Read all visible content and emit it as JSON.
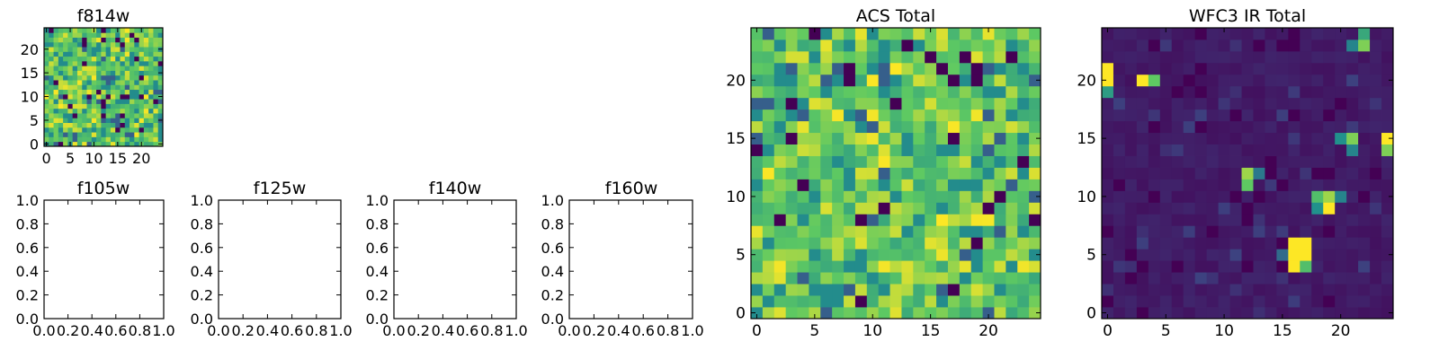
{
  "figure": {
    "colormap": [
      "#440154",
      "#3b528b",
      "#21918c",
      "#5ec962",
      "#fde725"
    ],
    "background": "#ffffff"
  },
  "chart_data": [
    {
      "name": "f814w",
      "type": "heatmap",
      "title": "f814w",
      "xlabel": "",
      "ylabel": "",
      "xlim": [
        -0.5,
        24.5
      ],
      "ylim": [
        -0.5,
        24.5
      ],
      "xticks": [
        "0",
        "5",
        "10",
        "15",
        "20"
      ],
      "yticks": [
        "0",
        "5",
        "10",
        "15",
        "20"
      ],
      "grid": "25x25",
      "seed": 814,
      "profile": "acs",
      "values": "not legible per pixel"
    },
    {
      "name": "f105w",
      "type": "empty",
      "title": "f105w",
      "xlim": [
        0,
        1
      ],
      "ylim": [
        0,
        1
      ],
      "xticks": [
        "0.0",
        "0.2",
        "0.4",
        "0.6",
        "0.8",
        "1.0"
      ],
      "yticks": [
        "0.0",
        "0.2",
        "0.4",
        "0.6",
        "0.8",
        "1.0"
      ]
    },
    {
      "name": "f125w",
      "type": "empty",
      "title": "f125w",
      "xlim": [
        0,
        1
      ],
      "ylim": [
        0,
        1
      ],
      "xticks": [
        "0.0",
        "0.2",
        "0.4",
        "0.6",
        "0.8",
        "1.0"
      ],
      "yticks": [
        "0.0",
        "0.2",
        "0.4",
        "0.6",
        "0.8",
        "1.0"
      ]
    },
    {
      "name": "f140w",
      "type": "empty",
      "title": "f140w",
      "xlim": [
        0,
        1
      ],
      "ylim": [
        0,
        1
      ],
      "xticks": [
        "0.0",
        "0.2",
        "0.4",
        "0.6",
        "0.8",
        "1.0"
      ],
      "yticks": [
        "0.0",
        "0.2",
        "0.4",
        "0.6",
        "0.8",
        "1.0"
      ]
    },
    {
      "name": "f160w",
      "type": "empty",
      "title": "f160w",
      "xlim": [
        0,
        1
      ],
      "ylim": [
        0,
        1
      ],
      "xticks": [
        "0.0",
        "0.2",
        "0.4",
        "0.6",
        "0.8",
        "1.0"
      ],
      "yticks": [
        "0.0",
        "0.2",
        "0.4",
        "0.6",
        "0.8",
        "1.0"
      ]
    },
    {
      "name": "acs-total",
      "type": "heatmap",
      "title": "ACS Total",
      "xlim": [
        -0.5,
        24.5
      ],
      "ylim": [
        -0.5,
        24.5
      ],
      "xticks": [
        "0",
        "5",
        "10",
        "15",
        "20"
      ],
      "yticks": [
        "0",
        "5",
        "10",
        "15",
        "20"
      ],
      "grid": "25x25",
      "seed": 1001,
      "profile": "acs",
      "values": "not legible per pixel"
    },
    {
      "name": "wfc3-ir-total",
      "type": "heatmap",
      "title": "WFC3 IR Total",
      "xlim": [
        -0.5,
        24.5
      ],
      "ylim": [
        -0.5,
        24.5
      ],
      "xticks": [
        "0",
        "5",
        "10",
        "15",
        "20"
      ],
      "yticks": [
        "0",
        "5",
        "10",
        "15",
        "20"
      ],
      "grid": "25x25",
      "seed": 2002,
      "profile": "ir",
      "bright_spots": [
        {
          "x": 0,
          "y": 21,
          "v": 1.0
        },
        {
          "x": 0,
          "y": 20,
          "v": 1.0
        },
        {
          "x": 0,
          "y": 19,
          "v": 0.55
        },
        {
          "x": 3,
          "y": 20,
          "v": 1.0
        },
        {
          "x": 4,
          "y": 20,
          "v": 0.75
        },
        {
          "x": 21,
          "y": 23,
          "v": 0.45
        },
        {
          "x": 22,
          "y": 23,
          "v": 0.8
        },
        {
          "x": 22,
          "y": 24,
          "v": 0.6
        },
        {
          "x": 12,
          "y": 12,
          "v": 0.85
        },
        {
          "x": 12,
          "y": 11,
          "v": 0.75
        },
        {
          "x": 13,
          "y": 12,
          "v": 0.4
        },
        {
          "x": 18,
          "y": 10,
          "v": 0.7
        },
        {
          "x": 19,
          "y": 10,
          "v": 0.85
        },
        {
          "x": 18,
          "y": 9,
          "v": 0.5
        },
        {
          "x": 19,
          "y": 9,
          "v": 1.0
        },
        {
          "x": 20,
          "y": 10,
          "v": 0.45
        },
        {
          "x": 16,
          "y": 6,
          "v": 1.0
        },
        {
          "x": 17,
          "y": 6,
          "v": 1.0
        },
        {
          "x": 16,
          "y": 5,
          "v": 1.0
        },
        {
          "x": 17,
          "y": 5,
          "v": 1.0
        },
        {
          "x": 16,
          "y": 4,
          "v": 1.0
        },
        {
          "x": 17,
          "y": 4,
          "v": 0.7
        },
        {
          "x": 15,
          "y": 5,
          "v": 0.35
        },
        {
          "x": 20,
          "y": 15,
          "v": 0.5
        },
        {
          "x": 21,
          "y": 15,
          "v": 0.8
        },
        {
          "x": 21,
          "y": 14,
          "v": 0.45
        },
        {
          "x": 24,
          "y": 15,
          "v": 1.0
        },
        {
          "x": 24,
          "y": 14,
          "v": 0.8
        }
      ],
      "values": "not legible per pixel"
    }
  ]
}
